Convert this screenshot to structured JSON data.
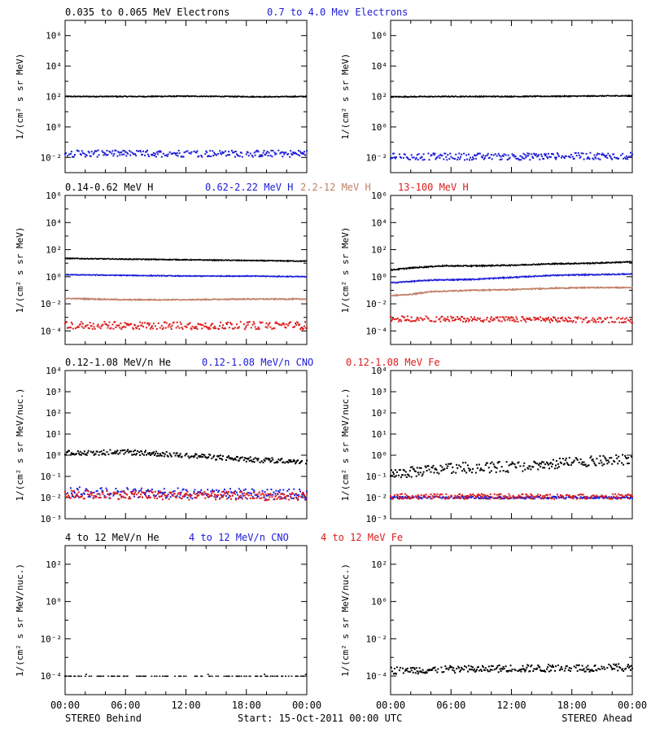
{
  "footer": {
    "left": "STEREO Behind",
    "center": "Start: 15-Oct-2011 00:00 UTC",
    "right": "STEREO Ahead"
  },
  "colors": {
    "black": "#000000",
    "blue": "#1c1cd8",
    "brown": "#c08068",
    "red": "#dd1c1c"
  },
  "chart_data": [
    {
      "type": "scatter",
      "panel": "electrons-behind",
      "spacecraft": "STEREO Behind",
      "legend": [
        {
          "text": "0.035 to 0.065 MeV Electrons",
          "color": "black"
        },
        {
          "text": "0.7 to 4.0 Mev Electrons",
          "color": "blue"
        }
      ],
      "ylabel": "1/(cm² s sr MeV)",
      "yscale": "log",
      "ylim_exp": [
        -3,
        7
      ],
      "ytick_exps": [
        -2,
        0,
        2,
        4,
        6
      ],
      "ytick_labels": [
        "10⁻²",
        "10⁰",
        "10²",
        "10⁴",
        "10⁶"
      ],
      "xlim_hours": [
        0,
        24
      ],
      "series": [
        {
          "color": "black",
          "style": "line",
          "x_hours": [
            0,
            4,
            8,
            12,
            16,
            20,
            24
          ],
          "log10_y": [
            2.0,
            2.0,
            2.0,
            2.02,
            2.0,
            1.98,
            2.0
          ],
          "noise": 0.03
        },
        {
          "color": "blue",
          "style": "dots",
          "x_hours": [
            0,
            12,
            24
          ],
          "log10_y": [
            -1.75,
            -1.75,
            -1.75
          ],
          "noise": 0.22
        }
      ]
    },
    {
      "type": "scatter",
      "panel": "electrons-ahead",
      "spacecraft": "STEREO Ahead",
      "legend": [],
      "ylabel": "1/(cm² s sr MeV)",
      "yscale": "log",
      "ylim_exp": [
        -3,
        7
      ],
      "ytick_exps": [
        -2,
        0,
        2,
        4,
        6
      ],
      "ytick_labels": [
        "10⁻²",
        "10⁰",
        "10²",
        "10⁴",
        "10⁶"
      ],
      "xlim_hours": [
        0,
        24
      ],
      "series": [
        {
          "color": "black",
          "style": "line",
          "x_hours": [
            0,
            6,
            12,
            18,
            24
          ],
          "log10_y": [
            1.98,
            2.0,
            2.0,
            2.02,
            2.05
          ],
          "noise": 0.03
        },
        {
          "color": "blue",
          "style": "dots",
          "x_hours": [
            0,
            12,
            24
          ],
          "log10_y": [
            -1.95,
            -1.95,
            -1.9
          ],
          "noise": 0.22
        }
      ]
    },
    {
      "type": "scatter",
      "panel": "protons-behind",
      "spacecraft": "STEREO Behind",
      "legend": [
        {
          "text": "0.14-0.62 MeV H",
          "color": "black"
        },
        {
          "text": "0.62-2.22 MeV H",
          "color": "blue"
        },
        {
          "text": "2.2-12 MeV H",
          "color": "brown"
        },
        {
          "text": "13-100 MeV H",
          "color": "red"
        }
      ],
      "ylabel": "1/(cm² s sr MeV)",
      "yscale": "log",
      "ylim_exp": [
        -5,
        6
      ],
      "ytick_exps": [
        -4,
        -2,
        0,
        2,
        4,
        6
      ],
      "ytick_labels": [
        "10⁻⁴",
        "10⁻²",
        "10⁰",
        "10²",
        "10⁴",
        "10⁶"
      ],
      "xlim_hours": [
        0,
        24
      ],
      "series": [
        {
          "color": "black",
          "style": "line",
          "x_hours": [
            0,
            6,
            12,
            18,
            24
          ],
          "log10_y": [
            1.35,
            1.3,
            1.25,
            1.2,
            1.15
          ],
          "noise": 0.03
        },
        {
          "color": "blue",
          "style": "line",
          "x_hours": [
            0,
            6,
            12,
            18,
            24
          ],
          "log10_y": [
            0.15,
            0.1,
            0.05,
            0.05,
            0.0
          ],
          "noise": 0.03
        },
        {
          "color": "brown",
          "style": "line",
          "x_hours": [
            0,
            6,
            12,
            18,
            24
          ],
          "log10_y": [
            -1.6,
            -1.7,
            -1.7,
            -1.65,
            -1.65
          ],
          "noise": 0.04
        },
        {
          "color": "red",
          "style": "dots",
          "x_hours": [
            0,
            12,
            24
          ],
          "log10_y": [
            -3.6,
            -3.6,
            -3.6
          ],
          "noise": 0.28
        }
      ]
    },
    {
      "type": "scatter",
      "panel": "protons-ahead",
      "spacecraft": "STEREO Ahead",
      "legend": [],
      "ylabel": "1/(cm² s sr MeV)",
      "yscale": "log",
      "ylim_exp": [
        -5,
        6
      ],
      "ytick_exps": [
        -4,
        -2,
        0,
        2,
        4,
        6
      ],
      "ytick_labels": [
        "10⁻⁴",
        "10⁻²",
        "10⁰",
        "10²",
        "10⁴",
        "10⁶"
      ],
      "xlim_hours": [
        0,
        24
      ],
      "series": [
        {
          "color": "black",
          "style": "line",
          "x_hours": [
            0,
            2,
            4,
            5,
            8,
            12,
            16,
            20,
            24
          ],
          "log10_y": [
            0.5,
            0.65,
            0.75,
            0.8,
            0.8,
            0.85,
            0.95,
            1.0,
            1.1
          ],
          "noise": 0.04
        },
        {
          "color": "blue",
          "style": "line",
          "x_hours": [
            0,
            2,
            4,
            8,
            12,
            16,
            20,
            24
          ],
          "log10_y": [
            -0.45,
            -0.35,
            -0.25,
            -0.2,
            -0.05,
            0.1,
            0.15,
            0.2
          ],
          "noise": 0.04
        },
        {
          "color": "brown",
          "style": "line",
          "x_hours": [
            0,
            2,
            4,
            8,
            12,
            16,
            20,
            24
          ],
          "log10_y": [
            -1.4,
            -1.3,
            -1.1,
            -1.0,
            -0.95,
            -0.85,
            -0.8,
            -0.8
          ],
          "noise": 0.04
        },
        {
          "color": "red",
          "style": "dots",
          "x_hours": [
            0,
            12,
            24
          ],
          "log10_y": [
            -3.1,
            -3.15,
            -3.2
          ],
          "noise": 0.2
        }
      ]
    },
    {
      "type": "scatter",
      "panel": "heavy-low-behind",
      "spacecraft": "STEREO Behind",
      "legend": [
        {
          "text": "0.12-1.08 MeV/n He",
          "color": "black"
        },
        {
          "text": "0.12-1.08 MeV/n CNO",
          "color": "blue"
        },
        {
          "text": "0.12-1.08 MeV Fe",
          "color": "red"
        }
      ],
      "ylabel": "1/(cm² s sr MeV/nuc.)",
      "yscale": "log",
      "ylim_exp": [
        -3,
        4
      ],
      "ytick_exps": [
        -3,
        -2,
        -1,
        0,
        1,
        2,
        3,
        4
      ],
      "ytick_labels": [
        "10⁻³",
        "10⁻²",
        "10⁻¹",
        "10⁰",
        "10¹",
        "10²",
        "10³",
        "10⁴"
      ],
      "xlim_hours": [
        0,
        24
      ],
      "series": [
        {
          "color": "black",
          "style": "dots",
          "x_hours": [
            0,
            6,
            12,
            18,
            24
          ],
          "log10_y": [
            0.1,
            0.15,
            0.0,
            -0.2,
            -0.3
          ],
          "noise": 0.12
        },
        {
          "color": "blue",
          "style": "dots",
          "x_hours": [
            0,
            12,
            24
          ],
          "log10_y": [
            -1.75,
            -1.8,
            -1.85
          ],
          "noise": 0.25
        },
        {
          "color": "red",
          "style": "dots",
          "x_hours": [
            0,
            12,
            24
          ],
          "log10_y": [
            -1.85,
            -1.9,
            -1.95
          ],
          "noise": 0.2
        }
      ]
    },
    {
      "type": "scatter",
      "panel": "heavy-low-ahead",
      "spacecraft": "STEREO Ahead",
      "legend": [],
      "ylabel": "1/(cm² s sr MeV/nuc.)",
      "yscale": "log",
      "ylim_exp": [
        -3,
        4
      ],
      "ytick_exps": [
        -3,
        -2,
        -1,
        0,
        1,
        2,
        3,
        4
      ],
      "ytick_labels": [
        "10⁻³",
        "10⁻²",
        "10⁻¹",
        "10⁰",
        "10¹",
        "10²",
        "10³",
        "10⁴"
      ],
      "xlim_hours": [
        0,
        24
      ],
      "series": [
        {
          "color": "black",
          "style": "dots",
          "x_hours": [
            0,
            6,
            12,
            18,
            24
          ],
          "log10_y": [
            -0.9,
            -0.6,
            -0.55,
            -0.35,
            -0.2
          ],
          "noise": 0.25
        },
        {
          "color": "blue",
          "style": "dots",
          "x_hours": [
            0,
            12,
            24
          ],
          "log10_y": [
            -2.0,
            -2.0,
            -2.0
          ],
          "noise": 0.05
        },
        {
          "color": "red",
          "style": "dots",
          "x_hours": [
            0,
            12,
            24
          ],
          "log10_y": [
            -1.95,
            -1.95,
            -1.95
          ],
          "noise": 0.12
        }
      ]
    },
    {
      "type": "scatter",
      "panel": "heavy-high-behind",
      "spacecraft": "STEREO Behind",
      "legend": [
        {
          "text": "4 to 12 MeV/n He",
          "color": "black"
        },
        {
          "text": "4 to 12 MeV/n CNO",
          "color": "blue"
        },
        {
          "text": "4 to 12 MeV Fe",
          "color": "red"
        }
      ],
      "ylabel": "1/(cm² s sr MeV/nuc.)",
      "yscale": "log",
      "ylim_exp": [
        -5,
        3
      ],
      "ytick_exps": [
        -4,
        -2,
        0,
        2
      ],
      "ytick_labels": [
        "10⁻⁴",
        "10⁻²",
        "10⁰",
        "10²"
      ],
      "xlim_hours": [
        0,
        24
      ],
      "series": [
        {
          "color": "black",
          "style": "sparse",
          "x_hours": [
            0,
            24
          ],
          "log10_y": [
            -4.0,
            -4.0
          ],
          "noise": 0.05
        }
      ]
    },
    {
      "type": "scatter",
      "panel": "heavy-high-ahead",
      "spacecraft": "STEREO Ahead",
      "legend": [],
      "ylabel": "1/(cm² s sr MeV/nuc.)",
      "yscale": "log",
      "ylim_exp": [
        -5,
        3
      ],
      "ytick_exps": [
        -4,
        -2,
        0,
        2
      ],
      "ytick_labels": [
        "10⁻⁴",
        "10⁻²",
        "10⁰",
        "10²"
      ],
      "xlim_hours": [
        0,
        24
      ],
      "series": [
        {
          "color": "black",
          "style": "dots",
          "x_hours": [
            0,
            12,
            24
          ],
          "log10_y": [
            -3.7,
            -3.6,
            -3.55
          ],
          "noise": 0.2
        }
      ]
    }
  ],
  "x_tick_labels": [
    "00:00",
    "06:00",
    "12:00",
    "18:00",
    "00:00"
  ]
}
